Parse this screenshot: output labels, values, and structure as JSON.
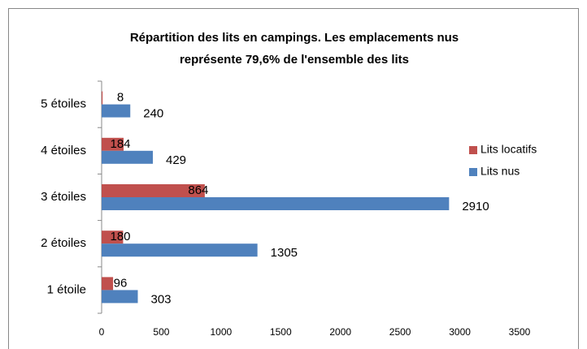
{
  "chart_data": {
    "type": "hbar",
    "title": [
      "Répartition des lits en campings. Les emplacements nus",
      "représente 79,6% de l'ensemble des lits"
    ],
    "categories": [
      "1 étoile",
      "2 étoiles",
      "3 étoiles",
      "4 étoiles",
      "5 étoiles"
    ],
    "series": [
      {
        "name": "Lits locatifs",
        "color": "#c0504d",
        "values": [
          96,
          180,
          864,
          184,
          8
        ]
      },
      {
        "name": "Lits nus",
        "color": "#4f81bd",
        "values": [
          303,
          1305,
          2910,
          429,
          240
        ]
      }
    ],
    "xlim": [
      0,
      3500
    ],
    "xticks": [
      0,
      500,
      1000,
      1500,
      2000,
      2500,
      3000,
      3500
    ],
    "grid": false,
    "legend": "right"
  }
}
